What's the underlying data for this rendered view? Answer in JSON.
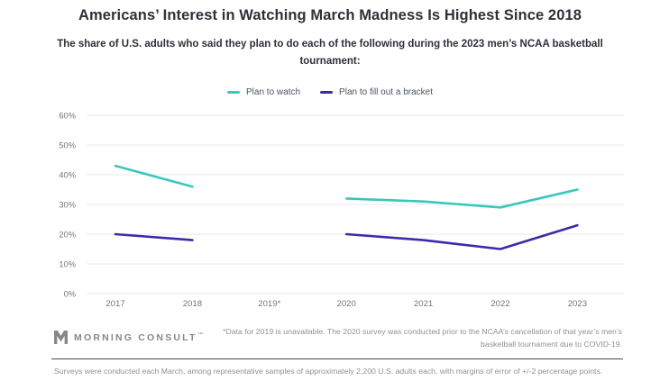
{
  "header": {
    "title": "Americans’ Interest in Watching March Madness Is Highest Since 2018",
    "subtitle": "The share of U.S. adults who said they plan to do each of the following during the 2023 men’s NCAA basketball tournament:"
  },
  "legend": [
    {
      "label": "Plan to watch",
      "color": "#38c9b9"
    },
    {
      "label": "Plan to fill out a bracket",
      "color": "#3a2bab"
    }
  ],
  "chart_data": {
    "type": "line",
    "categories": [
      "2017",
      "2018",
      "2019*",
      "2020",
      "2021",
      "2022",
      "2023"
    ],
    "series": [
      {
        "name": "Plan to watch",
        "color": "#38c9b9",
        "values": [
          43,
          36,
          null,
          32,
          31,
          29,
          35
        ]
      },
      {
        "name": "Plan to fill out a bracket",
        "color": "#3a2bab",
        "values": [
          20,
          18,
          null,
          20,
          18,
          15,
          23
        ]
      }
    ],
    "title": "Americans’ Interest in Watching March Madness Is Highest Since 2018",
    "xlabel": "",
    "ylabel": "",
    "ylim": [
      0,
      60
    ],
    "yticks": [
      "0%",
      "10%",
      "20%",
      "30%",
      "40%",
      "50%",
      "60%"
    ],
    "grid": true,
    "legend_position": "top",
    "note": "Gap in both series at 2019 (no data)"
  },
  "footer": {
    "logo_text": "MORNING CONSULT",
    "logo_tm": "™",
    "footnote": "*Data for 2019 is unavailable. The 2020 survey was conducted prior to the NCAA’s cancellation of that year’s men’s basketball tournament due to COVID-19.",
    "methodology": "Surveys were conducted each March, among representative samples of approximately 2,200 U.S. adults each, with margins of error of +/-2 percentage points."
  },
  "colors": {
    "title_text": "#2d3138",
    "axis_text": "#70767d",
    "gridline": "#e8eaec",
    "note_text": "#8d9298",
    "divider": "#474c52",
    "logo": "#85888c"
  }
}
